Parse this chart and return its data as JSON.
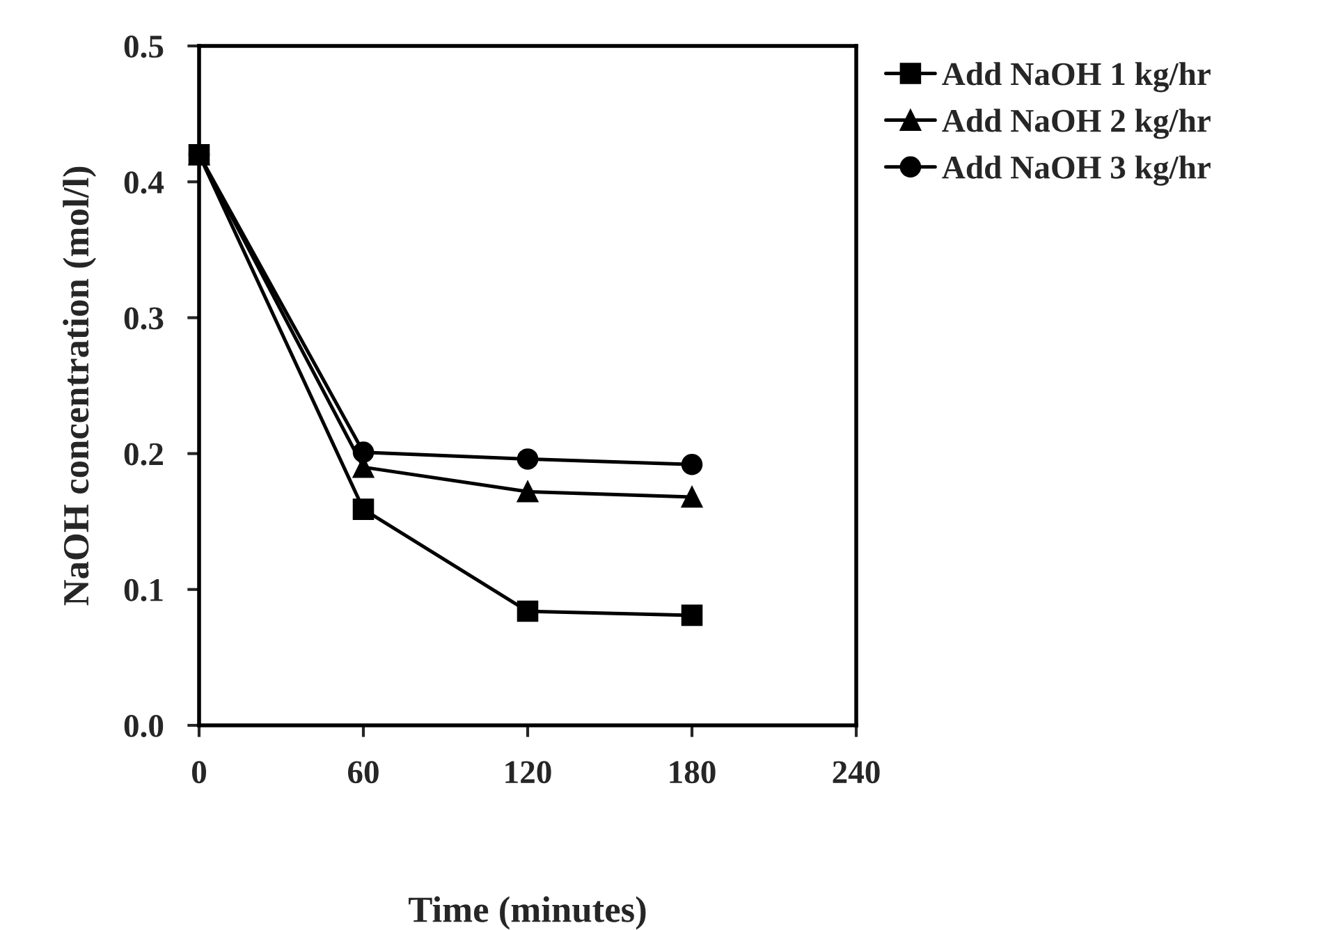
{
  "chart_data": {
    "type": "line",
    "xlabel": "Time (minutes)",
    "ylabel": "NaOH concentration (mol/l)",
    "x": [
      0,
      60,
      120,
      180
    ],
    "series": [
      {
        "name": "Add NaOH 1 kg/hr",
        "color": "#000000",
        "marker": "square",
        "values": [
          0.42,
          0.159,
          0.084,
          0.081
        ]
      },
      {
        "name": "Add NaOH 2 kg/hr",
        "color": "#000000",
        "marker": "triangle",
        "values": [
          0.42,
          0.19,
          0.172,
          0.168
        ]
      },
      {
        "name": "Add NaOH 3 kg/hr",
        "color": "#000000",
        "marker": "circle",
        "values": [
          0.42,
          0.201,
          0.196,
          0.192
        ]
      }
    ],
    "xlim": [
      0,
      240
    ],
    "xticks": [
      0,
      60,
      120,
      180,
      240
    ],
    "ylim": [
      0,
      0.5
    ],
    "yticks": [
      {
        "value": 0,
        "label": "0.0"
      },
      0.1,
      0.2,
      0.3,
      0.4,
      0.5
    ],
    "grid": false,
    "legend": "top right",
    "line_style": "solid"
  }
}
